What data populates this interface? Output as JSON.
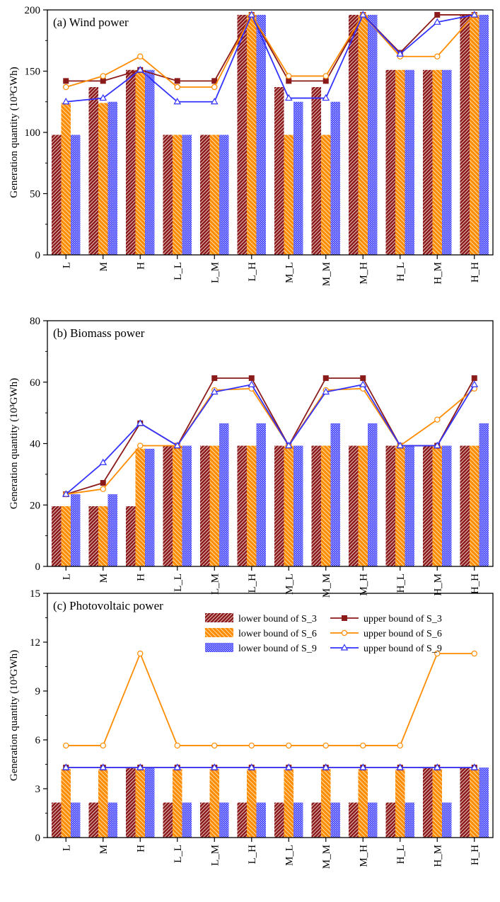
{
  "chart_data": [
    {
      "type": "bar",
      "panel": "a",
      "title": "(a) Wind power",
      "xlabel": "",
      "ylabel": "Generation quantity (10³GWh)",
      "ylim": [
        0,
        200
      ],
      "yticks": [
        0,
        50,
        100,
        150,
        200
      ],
      "categories": [
        "L",
        "M",
        "H",
        "L_L",
        "L_M",
        "L_H",
        "M_L",
        "M_M",
        "M_H",
        "H_L",
        "H_M",
        "H_H"
      ],
      "bar_series": [
        {
          "name": "lower bound of S_3",
          "color": "#8b1a1a",
          "values": [
            98,
            137,
            151,
            98,
            98,
            196,
            137,
            137,
            196,
            151,
            151,
            196
          ]
        },
        {
          "name": "lower bound of S_6",
          "color": "#ff8c00",
          "values": [
            124,
            124,
            151,
            98,
            98,
            196,
            98,
            98,
            196,
            151,
            151,
            196
          ]
        },
        {
          "name": "lower bound of S_9",
          "color": "#3333ff",
          "values": [
            98,
            125,
            151,
            98,
            98,
            196,
            125,
            125,
            196,
            151,
            151,
            196
          ]
        }
      ],
      "line_series": [
        {
          "name": "upper bound of S_3",
          "color": "#8b1a1a",
          "marker": "square",
          "values": [
            142,
            142,
            151,
            142,
            142,
            196,
            142,
            142,
            196,
            165,
            196,
            196
          ]
        },
        {
          "name": "upper bound of S_6",
          "color": "#ff8c00",
          "marker": "circle",
          "values": [
            137,
            146,
            162,
            137,
            137,
            196,
            146,
            146,
            196,
            162,
            162,
            196
          ]
        },
        {
          "name": "upper bound of S_9",
          "color": "#3333ff",
          "marker": "triangle",
          "values": [
            125,
            128,
            151,
            125,
            125,
            196,
            128,
            128,
            196,
            164,
            190,
            196
          ]
        }
      ]
    },
    {
      "type": "bar",
      "panel": "b",
      "title": "(b) Biomass power",
      "xlabel": "",
      "ylabel": "Generation quantity (10³GWh)",
      "ylim": [
        0,
        80
      ],
      "yticks": [
        0,
        20,
        40,
        60,
        80
      ],
      "categories": [
        "L",
        "M",
        "H",
        "L_L",
        "L_M",
        "L_H",
        "M_L",
        "M_M",
        "M_H",
        "H_L",
        "H_M",
        "H_H"
      ],
      "bar_series": [
        {
          "name": "lower bound of S_3",
          "color": "#8b1a1a",
          "values": [
            19.6,
            19.6,
            19.6,
            39.3,
            39.3,
            39.3,
            39.3,
            39.3,
            39.3,
            39.3,
            39.3,
            39.3
          ]
        },
        {
          "name": "lower bound of S_6",
          "color": "#ff8c00",
          "values": [
            19.6,
            19.6,
            38.3,
            39.3,
            39.3,
            39.3,
            39.3,
            39.3,
            39.3,
            39.3,
            39.3,
            39.3
          ]
        },
        {
          "name": "lower bound of S_9",
          "color": "#3333ff",
          "values": [
            23.5,
            23.5,
            38.3,
            39.3,
            46.6,
            46.6,
            39.3,
            46.6,
            46.6,
            39.3,
            39.3,
            46.6
          ]
        }
      ],
      "line_series": [
        {
          "name": "upper bound of S_3",
          "color": "#8b1a1a",
          "marker": "square",
          "values": [
            23.5,
            27.2,
            46.6,
            39.3,
            61.3,
            61.3,
            39.3,
            61.3,
            61.3,
            39.3,
            39.3,
            61.3
          ]
        },
        {
          "name": "upper bound of S_6",
          "color": "#ff8c00",
          "marker": "circle",
          "values": [
            23.5,
            25.2,
            39.3,
            39.3,
            57.4,
            57.9,
            39.3,
            57.4,
            57.9,
            39.3,
            47.8,
            57.9
          ]
        },
        {
          "name": "upper bound of S_9",
          "color": "#3333ff",
          "marker": "triangle",
          "values": [
            23.5,
            33.8,
            46.6,
            39.3,
            56.8,
            59.2,
            39.3,
            56.8,
            59.2,
            39.3,
            39.3,
            59.2
          ]
        }
      ]
    },
    {
      "type": "bar",
      "panel": "c",
      "title": "(c) Photovoltaic power",
      "xlabel": "",
      "ylabel": "Generation quantity (10³GWh)",
      "ylim": [
        0,
        15
      ],
      "yticks": [
        0,
        3,
        6,
        9,
        12,
        15
      ],
      "legend_position": "top-right",
      "categories": [
        "L",
        "M",
        "H",
        "L_L",
        "L_M",
        "L_H",
        "M_L",
        "M_M",
        "M_H",
        "H_L",
        "H_M",
        "H_H"
      ],
      "bar_series": [
        {
          "name": "lower bound of S_3",
          "color": "#8b1a1a",
          "values": [
            2.15,
            2.15,
            4.3,
            2.15,
            2.15,
            2.15,
            2.15,
            2.15,
            2.15,
            2.15,
            4.3,
            4.3
          ]
        },
        {
          "name": "lower bound of S_6",
          "color": "#ff8c00",
          "values": [
            4.2,
            4.2,
            4.2,
            4.2,
            4.2,
            4.2,
            4.2,
            4.2,
            4.2,
            4.2,
            4.2,
            4.2
          ]
        },
        {
          "name": "lower bound of S_9",
          "color": "#3333ff",
          "values": [
            2.15,
            2.15,
            4.3,
            2.15,
            2.15,
            2.15,
            2.15,
            2.15,
            2.15,
            2.15,
            2.15,
            4.3
          ]
        }
      ],
      "line_series": [
        {
          "name": "upper bound of S_3",
          "color": "#8b1a1a",
          "marker": "square",
          "values": [
            4.3,
            4.3,
            4.3,
            4.3,
            4.3,
            4.3,
            4.3,
            4.3,
            4.3,
            4.3,
            4.3,
            4.3
          ]
        },
        {
          "name": "upper bound of S_6",
          "color": "#ff8c00",
          "marker": "circle",
          "values": [
            5.65,
            5.65,
            11.3,
            5.65,
            5.65,
            5.65,
            5.65,
            5.65,
            5.65,
            5.65,
            11.3,
            11.3
          ]
        },
        {
          "name": "upper bound of S_9",
          "color": "#3333ff",
          "marker": "triangle",
          "values": [
            4.3,
            4.3,
            4.3,
            4.3,
            4.3,
            4.3,
            4.3,
            4.3,
            4.3,
            4.3,
            4.3,
            4.3
          ]
        }
      ]
    }
  ]
}
